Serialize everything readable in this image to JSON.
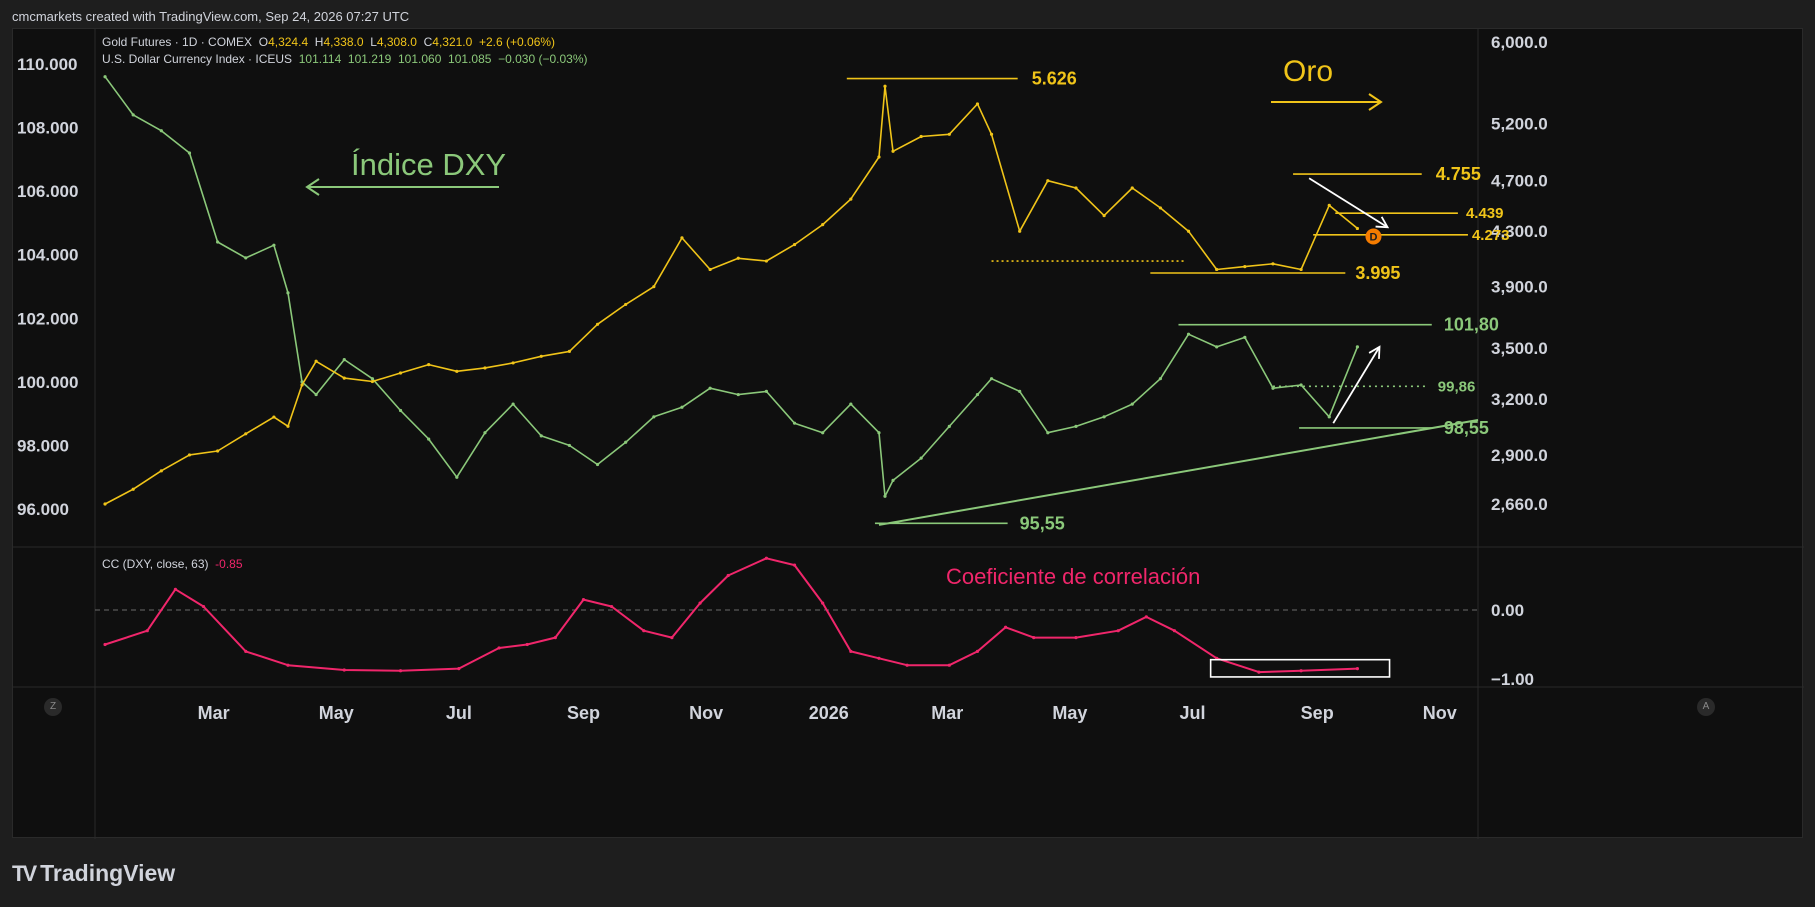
{
  "header": {
    "caption": "cmcmarkets created with TradingView.com, Sep 24, 2026 07:27 UTC"
  },
  "legend": {
    "gold": {
      "name": "Gold Futures · 1D · COMEX",
      "o_label": "O",
      "o": "4,324.4",
      "h_label": "H",
      "h": "4,338.0",
      "l_label": "L",
      "l": "4,308.0",
      "c_label": "C",
      "c": "4,321.0",
      "chg": "+2.6 (+0.06%)"
    },
    "dxy": {
      "name": "U.S. Dollar Currency Index · ICEUS",
      "o": "101.114",
      "h": "101.219",
      "l": "101.060",
      "c": "101.085",
      "chg": "−0.030 (−0.03%)"
    },
    "cc": {
      "name": "CC (DXY, close, 63)",
      "value": "-0.85"
    }
  },
  "annotations": {
    "oro": "Oro",
    "dxy": "Índice DXY",
    "corr": "Coeficiente de correlación",
    "gold_levels": [
      "5.626",
      "4.755",
      "4.439",
      "4.273",
      "3.995"
    ],
    "dxy_levels": [
      "101,80",
      "99,86",
      "98,55",
      "95,55"
    ],
    "marker": "D"
  },
  "footer": {
    "brand": "TradingView",
    "left_btn": "Z",
    "right_btn": "A"
  },
  "colors": {
    "gold": "#f0c419",
    "dxy": "#8bc87a",
    "corr": "#f0266b",
    "bg": "#0f0f0f"
  },
  "chart_data": [
    {
      "type": "line",
      "title": "Gold Futures · 1D · COMEX",
      "y_scale": "log",
      "y_ticks": [
        "6,000.0",
        "5,200.0",
        "4,700.0",
        "4,300.0",
        "3,900.0",
        "3,500.0",
        "3,200.0",
        "2,900.0",
        "2,660.0"
      ],
      "x_ticks": [
        "Mar",
        "May",
        "Jul",
        "Sep",
        "Nov",
        "2026",
        "Mar",
        "May",
        "Jul",
        "Sep",
        "Nov"
      ],
      "x": [
        "2025-01-06",
        "2025-01-20",
        "2025-02-03",
        "2025-02-17",
        "2025-03-03",
        "2025-03-17",
        "2025-03-31",
        "2025-04-07",
        "2025-04-14",
        "2025-04-21",
        "2025-05-05",
        "2025-05-19",
        "2025-06-02",
        "2025-06-16",
        "2025-06-30",
        "2025-07-14",
        "2025-07-28",
        "2025-08-11",
        "2025-08-25",
        "2025-09-08",
        "2025-09-22",
        "2025-10-06",
        "2025-10-20",
        "2025-11-03",
        "2025-11-17",
        "2025-12-01",
        "2025-12-15",
        "2025-12-29",
        "2026-01-12",
        "2026-01-26",
        "2026-01-29",
        "2026-02-02",
        "2026-02-16",
        "2026-03-02",
        "2026-03-16",
        "2026-03-23",
        "2026-04-06",
        "2026-04-20",
        "2026-05-04",
        "2026-05-18",
        "2026-06-01",
        "2026-06-15",
        "2026-06-29",
        "2026-07-13",
        "2026-07-27",
        "2026-08-10",
        "2026-08-24",
        "2026-09-07",
        "2026-09-21"
      ],
      "values": [
        2660,
        2730,
        2820,
        2900,
        2920,
        3010,
        3100,
        3050,
        3280,
        3420,
        3320,
        3300,
        3350,
        3400,
        3360,
        3380,
        3410,
        3450,
        3480,
        3650,
        3780,
        3900,
        4250,
        4020,
        4100,
        4080,
        4200,
        4350,
        4550,
        4900,
        5550,
        4950,
        5080,
        5100,
        5380,
        5100,
        4300,
        4700,
        4640,
        4420,
        4640,
        4480,
        4300,
        4020,
        4040,
        4060,
        4020,
        4500,
        4321
      ],
      "levels": {
        "high": 5626,
        "resistance": 4755,
        "mid": 4439,
        "support": 4273,
        "low": 3995
      }
    },
    {
      "type": "line",
      "title": "U.S. Dollar Currency Index · ICEUS",
      "y_ticks": [
        "110.000",
        "108.000",
        "106.000",
        "104.000",
        "102.000",
        "100.000",
        "98.000",
        "96.000"
      ],
      "x": [
        "2025-01-06",
        "2025-01-20",
        "2025-02-03",
        "2025-02-17",
        "2025-03-03",
        "2025-03-17",
        "2025-03-31",
        "2025-04-07",
        "2025-04-14",
        "2025-04-21",
        "2025-05-05",
        "2025-05-19",
        "2025-06-02",
        "2025-06-16",
        "2025-06-30",
        "2025-07-14",
        "2025-07-28",
        "2025-08-11",
        "2025-08-25",
        "2025-09-08",
        "2025-09-22",
        "2025-10-06",
        "2025-10-20",
        "2025-11-03",
        "2025-11-17",
        "2025-12-01",
        "2025-12-15",
        "2025-12-29",
        "2026-01-12",
        "2026-01-26",
        "2026-01-29",
        "2026-02-02",
        "2026-02-16",
        "2026-03-02",
        "2026-03-16",
        "2026-03-23",
        "2026-04-06",
        "2026-04-20",
        "2026-05-04",
        "2026-05-18",
        "2026-06-01",
        "2026-06-15",
        "2026-06-29",
        "2026-07-13",
        "2026-07-27",
        "2026-08-10",
        "2026-08-24",
        "2026-09-07",
        "2026-09-21"
      ],
      "values": [
        109.6,
        108.4,
        107.9,
        107.2,
        104.4,
        103.9,
        104.3,
        102.8,
        100.0,
        99.6,
        100.7,
        100.1,
        99.1,
        98.2,
        97.0,
        98.4,
        99.3,
        98.3,
        98.0,
        97.4,
        98.1,
        98.9,
        99.2,
        99.8,
        99.6,
        99.7,
        98.7,
        98.4,
        99.3,
        98.4,
        96.4,
        96.9,
        97.6,
        98.6,
        99.6,
        100.1,
        99.7,
        98.4,
        98.6,
        98.9,
        99.3,
        100.1,
        101.5,
        101.1,
        101.4,
        99.8,
        99.9,
        98.9,
        101.1
      ],
      "levels": {
        "resistance": 101.8,
        "mid": 99.86,
        "support": 98.55,
        "low": 95.55
      }
    },
    {
      "type": "line",
      "title": "CC (DXY, close, 63)",
      "y_ticks": [
        "0.00",
        "−1.00"
      ],
      "x": [
        "2025-01-06",
        "2025-01-27",
        "2025-02-10",
        "2025-02-24",
        "2025-03-17",
        "2025-04-07",
        "2025-05-05",
        "2025-06-02",
        "2025-07-01",
        "2025-07-21",
        "2025-08-04",
        "2025-08-18",
        "2025-09-01",
        "2025-09-15",
        "2025-10-01",
        "2025-10-15",
        "2025-10-29",
        "2025-11-12",
        "2025-12-01",
        "2025-12-15",
        "2025-12-29",
        "2026-01-12",
        "2026-01-26",
        "2026-02-09",
        "2026-03-02",
        "2026-03-16",
        "2026-03-30",
        "2026-04-13",
        "2026-05-04",
        "2026-05-25",
        "2026-06-08",
        "2026-06-22",
        "2026-07-13",
        "2026-08-03",
        "2026-08-24",
        "2026-09-21"
      ],
      "values": [
        -0.5,
        -0.3,
        0.3,
        0.05,
        -0.6,
        -0.8,
        -0.87,
        -0.88,
        -0.85,
        -0.55,
        -0.5,
        -0.4,
        0.15,
        0.05,
        -0.3,
        -0.4,
        0.1,
        0.5,
        0.75,
        0.65,
        0.1,
        -0.6,
        -0.7,
        -0.8,
        -0.8,
        -0.6,
        -0.25,
        -0.4,
        -0.4,
        -0.3,
        -0.1,
        -0.3,
        -0.7,
        -0.9,
        -0.88,
        -0.85
      ]
    }
  ]
}
